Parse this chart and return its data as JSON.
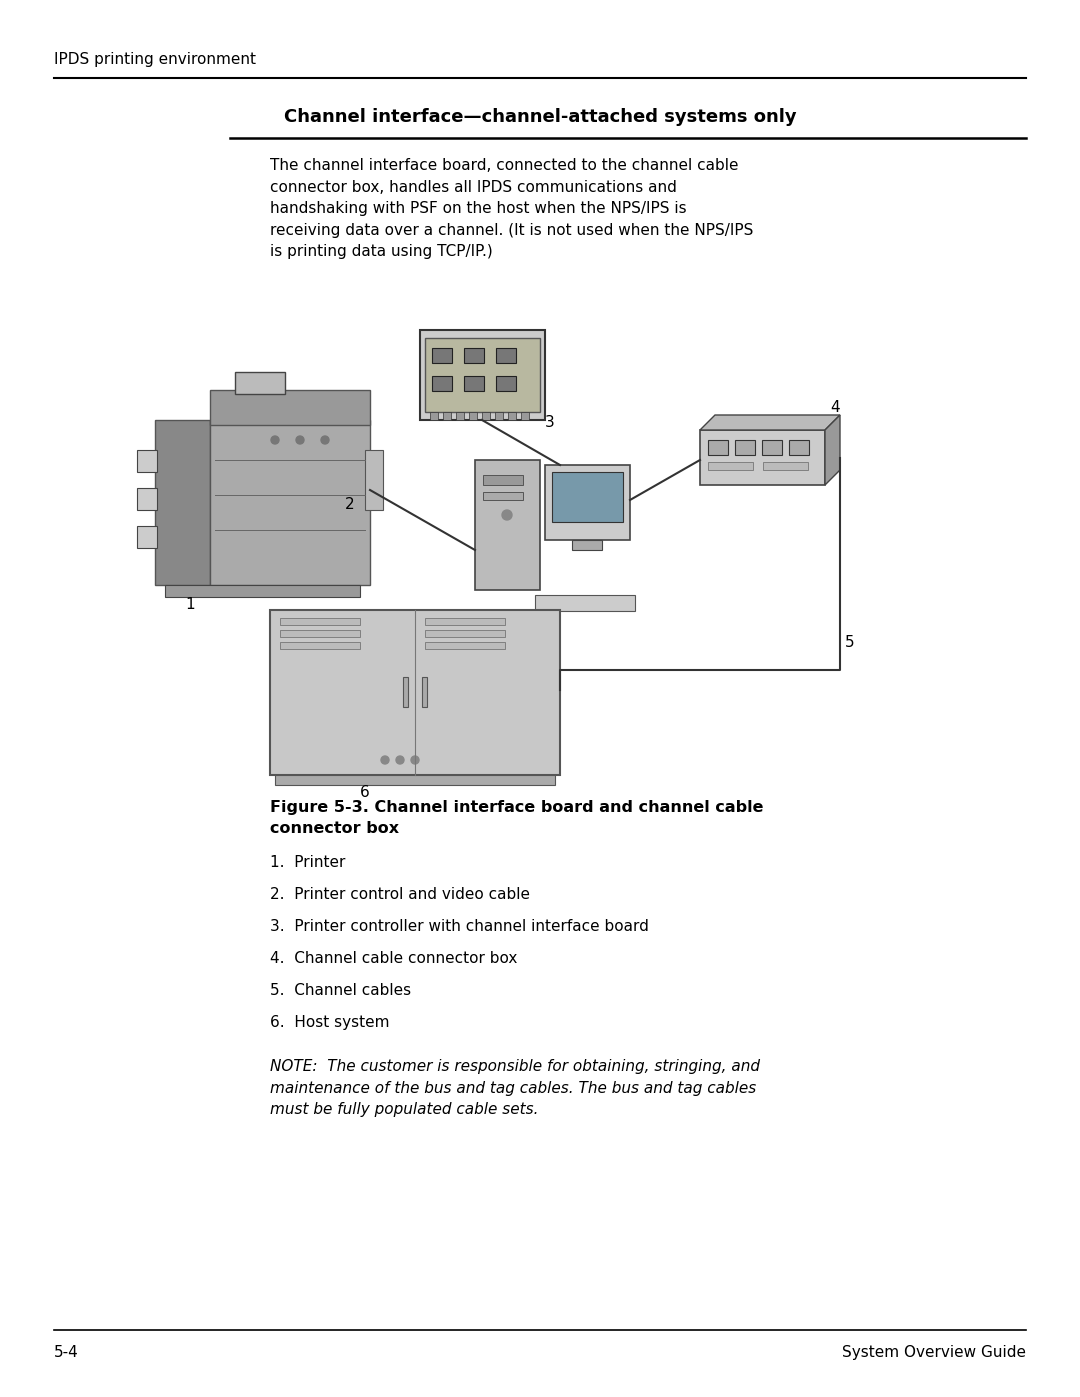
{
  "bg_color": "#ffffff",
  "header_text": "IPDS printing environment",
  "section_title": "Channel interface—channel-attached systems only",
  "body_text": "The channel interface board, connected to the channel cable\nconnector box, handles all IPDS communications and\nhandshaking with PSF on the host when the NPS/IPS is\nreceiving data over a channel. (It is not used when the NPS/IPS\nis printing data using TCP/IP.)",
  "figure_caption_bold_1": "Figure 5-3. Channel interface board and channel cable",
  "figure_caption_bold_2": "connector box",
  "list_items": [
    "1.  Printer",
    "2.  Printer control and video cable",
    "3.  Printer controller with channel interface board",
    "4.  Channel cable connector box",
    "5.  Channel cables",
    "6.  Host system"
  ],
  "note_text": "NOTE:  The customer is responsible for obtaining, stringing, and\nmaintenance of the bus and tag cables. The bus and tag cables\nmust be fully populated cable sets.",
  "footer_left": "5-4",
  "footer_right": "System Overview Guide"
}
